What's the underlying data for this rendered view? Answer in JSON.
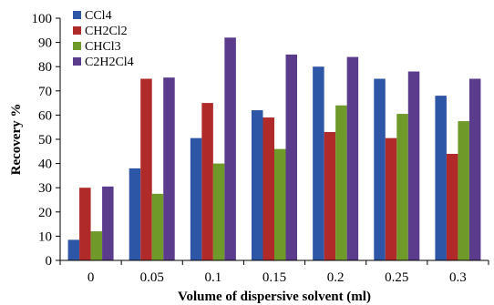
{
  "chart_data": {
    "type": "bar",
    "title": "",
    "xlabel": "Volume of  dispersive solvent (ml)",
    "ylabel": "Recovery %",
    "categories": [
      "0",
      "0.05",
      "0.1",
      "0.15",
      "0.2",
      "0.25",
      "0.3"
    ],
    "ylim": [
      0,
      100
    ],
    "yticks": [
      0,
      10,
      20,
      30,
      40,
      50,
      60,
      70,
      80,
      90,
      100
    ],
    "grid": false,
    "legend_position": "top-left",
    "series": [
      {
        "name": "CCl4",
        "color": "#2e56a6",
        "values": [
          8.5,
          38,
          50.5,
          62,
          80,
          75,
          68
        ]
      },
      {
        "name": "CH2Cl2",
        "color": "#b02a2a",
        "values": [
          30,
          75,
          65,
          59,
          53,
          50.5,
          44
        ]
      },
      {
        "name": "CHCl3",
        "color": "#6f9a2a",
        "values": [
          12,
          27.5,
          40,
          46,
          64,
          60.5,
          57.5
        ]
      },
      {
        "name": "C2H2Cl4",
        "color": "#5b3b8b",
        "values": [
          30.5,
          75.5,
          92,
          85,
          84,
          78,
          75
        ]
      }
    ]
  }
}
